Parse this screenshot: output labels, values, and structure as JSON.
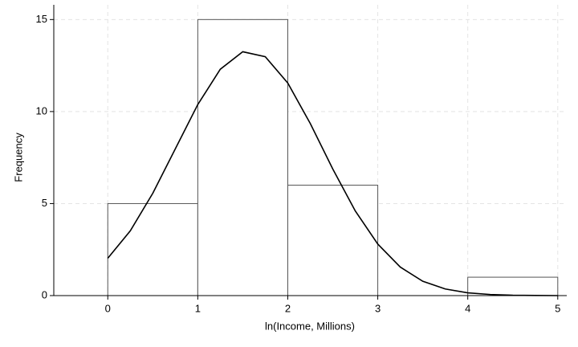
{
  "chart_data": {
    "type": "histogram",
    "xlabel": "ln(Income, Millions)",
    "ylabel": "Frequency",
    "bins": [
      0,
      1,
      2,
      3,
      4,
      5
    ],
    "counts": [
      5,
      15,
      6,
      0,
      1
    ],
    "bar_color": "#ffffff",
    "edge_color": "#555555",
    "density": {
      "color": "#000000",
      "x": [
        0,
        0.25,
        0.5,
        0.75,
        1,
        1.25,
        1.5,
        1.75,
        2,
        2.25,
        2.5,
        2.75,
        3,
        3.25,
        3.5,
        3.75,
        4,
        4.25,
        4.5,
        4.75,
        5
      ],
      "y": [
        2.03,
        3.52,
        5.56,
        7.97,
        10.38,
        12.3,
        13.25,
        12.98,
        11.55,
        9.35,
        6.88,
        4.6,
        2.8,
        1.55,
        0.78,
        0.36,
        0.15,
        0.06,
        0.02,
        0.01,
        0
      ]
    },
    "xlim": [
      -0.6,
      5.1
    ],
    "ylim": [
      0,
      15.8
    ],
    "xticks": [
      0,
      1,
      2,
      3,
      4,
      5
    ],
    "yticks": [
      0,
      5,
      10,
      15
    ],
    "grid": true
  }
}
